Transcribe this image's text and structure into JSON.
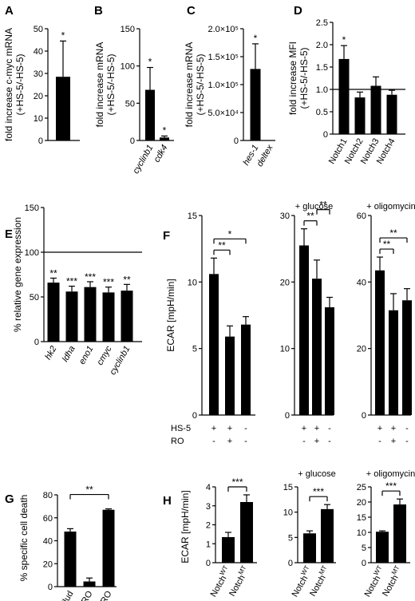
{
  "chart_data": [
    {
      "panel": "A",
      "type": "bar",
      "ylabel": [
        "fold increase c-myc mRNA",
        "(+HS-5/-HS-5)"
      ],
      "ylim": [
        0,
        50
      ],
      "yticks": [
        0,
        10,
        20,
        30,
        40,
        50
      ],
      "categories": [
        ""
      ],
      "values": [
        28.5
      ],
      "errors": [
        16
      ],
      "significance": [
        "*"
      ]
    },
    {
      "panel": "B",
      "type": "bar",
      "ylabel": [
        "fold increase mRNA",
        "(+HS-5/-HS-5)"
      ],
      "ylim": [
        0,
        150
      ],
      "yticks": [
        0,
        50,
        100,
        150
      ],
      "categories": [
        "cyclinb1",
        "cdk4"
      ],
      "values": [
        68,
        4
      ],
      "errors": [
        30,
        2
      ],
      "significance": [
        "*",
        "*"
      ]
    },
    {
      "panel": "C",
      "type": "bar",
      "ylabel": [
        "fold increase mRNA",
        "(+HS-5/-HS-5)"
      ],
      "ylim": [
        0,
        200000
      ],
      "yticks": [
        0,
        50000,
        100000,
        150000,
        200000
      ],
      "ytick_labels": [
        "0",
        "5.0×10⁴",
        "1.0×10⁵",
        "1.5×10⁵",
        "2.0×10⁵"
      ],
      "categories": [
        "hes-1",
        "deltex"
      ],
      "values": [
        128000,
        0
      ],
      "errors": [
        45000,
        0
      ],
      "significance": [
        "*",
        ""
      ]
    },
    {
      "panel": "D",
      "type": "bar",
      "ylabel": [
        "fold increase MFI",
        "(+HS-5/-HS-5)"
      ],
      "ylim": [
        0,
        2.5
      ],
      "yticks": [
        0,
        0.5,
        1.0,
        1.5,
        2.0,
        2.5
      ],
      "ytick_labels": [
        "0",
        "0.5",
        "1.0",
        "1.5",
        "2.0",
        "2.5"
      ],
      "reference_line": 1.0,
      "categories": [
        "Notch1",
        "Notch2",
        "Notch3",
        "Notch4"
      ],
      "values": [
        1.68,
        0.82,
        1.08,
        0.88
      ],
      "errors": [
        0.3,
        0.12,
        0.2,
        0.1
      ],
      "significance": [
        "*",
        "",
        "",
        ""
      ]
    },
    {
      "panel": "E",
      "type": "bar",
      "ylabel": [
        "% relative gene expression"
      ],
      "ylim": [
        0,
        150
      ],
      "yticks": [
        0,
        50,
        100,
        150
      ],
      "reference_line": 100,
      "categories": [
        "hk2",
        "ldha",
        "eno1",
        "cmyc",
        "cyclinb1"
      ],
      "values": [
        66,
        56,
        61,
        55,
        57
      ],
      "errors": [
        5,
        6,
        6,
        6,
        7
      ],
      "significance": [
        "**",
        "***",
        "***",
        "***",
        "**"
      ]
    },
    {
      "panel": "F",
      "type": "bar",
      "ylabel": [
        "ECAR [mpH/min]"
      ],
      "row_labels": [
        "HS-5",
        "RO"
      ],
      "conditions": [
        [
          "+",
          "+",
          "-"
        ],
        [
          "-",
          "+",
          "-"
        ]
      ],
      "subpanels": [
        {
          "title": "",
          "ylim": [
            0,
            15
          ],
          "yticks": [
            0,
            5,
            10,
            15
          ],
          "values": [
            10.6,
            5.9,
            6.8
          ],
          "errors": [
            1.2,
            0.8,
            0.6
          ],
          "brackets": [
            {
              "from": 0,
              "to": 1,
              "label": "**"
            },
            {
              "from": 0,
              "to": 2,
              "label": "*"
            }
          ]
        },
        {
          "title": "+ glucose",
          "ylim": [
            0,
            30
          ],
          "yticks": [
            0,
            10,
            20,
            30
          ],
          "values": [
            25.5,
            20.5,
            16.2
          ],
          "errors": [
            2.5,
            2.8,
            1.5
          ],
          "brackets": [
            {
              "from": 0,
              "to": 1,
              "label": "**"
            },
            {
              "from": 1,
              "to": 2,
              "label": "**"
            }
          ]
        },
        {
          "title": "+ oligomycin",
          "ylim": [
            0,
            60
          ],
          "yticks": [
            0,
            20,
            40,
            60
          ],
          "values": [
            43.5,
            31.5,
            34.5
          ],
          "errors": [
            4,
            5,
            3.5
          ],
          "brackets": [
            {
              "from": 0,
              "to": 1,
              "label": "**"
            },
            {
              "from": 0,
              "to": 2,
              "label": "**"
            }
          ]
        }
      ]
    },
    {
      "panel": "G",
      "type": "bar",
      "ylabel": [
        "% specific cell death"
      ],
      "ylim": [
        0,
        80
      ],
      "yticks": [
        0,
        20,
        40,
        60,
        80
      ],
      "categories": [
        "Flud",
        "RO",
        "Flud + RO"
      ],
      "values": [
        48,
        4.5,
        67
      ],
      "errors": [
        2.5,
        3,
        0.8
      ],
      "brackets": [
        {
          "from": 0,
          "to": 2,
          "label": "**"
        }
      ]
    },
    {
      "panel": "H",
      "type": "bar",
      "ylabel": [
        "ECAR [mpH/min]"
      ],
      "categories": [
        {
          "base": "Notch",
          "sup": "WT"
        },
        {
          "base": "Notch",
          "sup": "MT"
        }
      ],
      "subpanels": [
        {
          "title": "",
          "ylim": [
            0,
            4
          ],
          "yticks": [
            0,
            1,
            2,
            3,
            4
          ],
          "values": [
            1.35,
            3.2
          ],
          "errors": [
            0.25,
            0.38
          ],
          "brackets": [
            {
              "from": 0,
              "to": 1,
              "label": "***"
            }
          ]
        },
        {
          "title": "+ glucose",
          "ylim": [
            0,
            15
          ],
          "yticks": [
            0,
            5,
            10,
            15
          ],
          "values": [
            5.8,
            10.6
          ],
          "errors": [
            0.5,
            0.9
          ],
          "brackets": [
            {
              "from": 0,
              "to": 1,
              "label": "***"
            }
          ]
        },
        {
          "title": "+ oligomycin",
          "ylim": [
            0,
            25
          ],
          "yticks": [
            0,
            5,
            10,
            15,
            20,
            25
          ],
          "values": [
            10.2,
            19.2
          ],
          "errors": [
            0.3,
            1.8
          ],
          "brackets": [
            {
              "from": 0,
              "to": 1,
              "label": "***"
            }
          ]
        }
      ]
    }
  ]
}
